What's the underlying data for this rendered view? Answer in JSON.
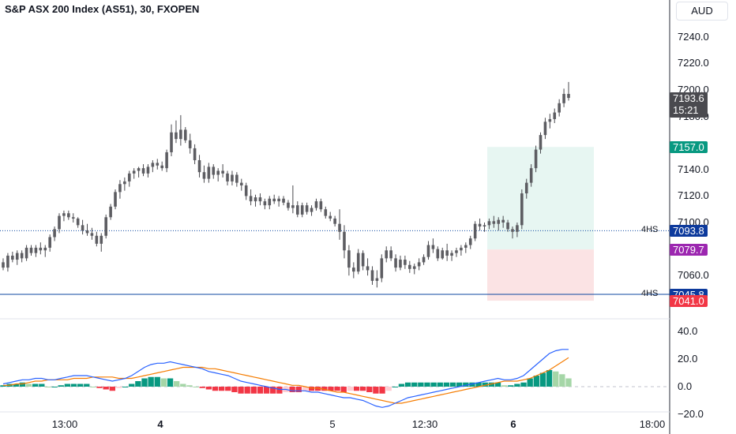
{
  "header": {
    "title": "S&P ASX 200 Index (AS51), 30, FXOPEN",
    "currency_label": "AUD"
  },
  "chart_data": {
    "type": "candlestick",
    "price_axis": {
      "ticks": [
        "7240.0",
        "7220.0",
        "7200.0",
        "7180.0",
        "7140.0",
        "7120.0",
        "7100.0",
        "7060.0"
      ],
      "ylim": [
        7034,
        7262
      ]
    },
    "time_axis": {
      "ticks": [
        "13:00",
        "4",
        "5",
        "12:30",
        "6",
        "18:00"
      ],
      "bold": [
        false,
        true,
        false,
        false,
        true,
        false
      ]
    },
    "candles": [
      [
        7070,
        7073,
        7064,
        7066
      ],
      [
        7066,
        7077,
        7063,
        7075
      ],
      [
        7075,
        7078,
        7070,
        7072
      ],
      [
        7072,
        7079,
        7068,
        7077
      ],
      [
        7077,
        7079,
        7070,
        7073
      ],
      [
        7073,
        7083,
        7071,
        7081
      ],
      [
        7081,
        7083,
        7075,
        7077
      ],
      [
        7077,
        7083,
        7074,
        7081
      ],
      [
        7081,
        7085,
        7076,
        7079
      ],
      [
        7079,
        7083,
        7074,
        7081
      ],
      [
        7081,
        7091,
        7078,
        7089
      ],
      [
        7089,
        7097,
        7086,
        7095
      ],
      [
        7095,
        7107,
        7092,
        7105
      ],
      [
        7105,
        7109,
        7101,
        7107
      ],
      [
        7107,
        7109,
        7102,
        7104
      ],
      [
        7104,
        7107,
        7100,
        7103
      ],
      [
        7103,
        7104,
        7096,
        7098
      ],
      [
        7098,
        7102,
        7091,
        7094
      ],
      [
        7094,
        7099,
        7090,
        7092
      ],
      [
        7092,
        7096,
        7087,
        7090
      ],
      [
        7090,
        7093,
        7082,
        7084
      ],
      [
        7084,
        7092,
        7078,
        7090
      ],
      [
        7090,
        7106,
        7088,
        7104
      ],
      [
        7104,
        7114,
        7102,
        7112
      ],
      [
        7112,
        7125,
        7110,
        7123
      ],
      [
        7123,
        7132,
        7118,
        7129
      ],
      [
        7129,
        7134,
        7124,
        7131
      ],
      [
        7131,
        7139,
        7127,
        7137
      ],
      [
        7137,
        7141,
        7133,
        7139
      ],
      [
        7139,
        7142,
        7134,
        7141
      ],
      [
        7141,
        7144,
        7135,
        7137
      ],
      [
        7137,
        7144,
        7134,
        7142
      ],
      [
        7142,
        7147,
        7138,
        7145
      ],
      [
        7145,
        7148,
        7140,
        7143
      ],
      [
        7143,
        7146,
        7139,
        7141
      ],
      [
        7141,
        7155,
        7138,
        7153
      ],
      [
        7153,
        7174,
        7150,
        7168
      ],
      [
        7168,
        7177,
        7160,
        7163
      ],
      [
        7163,
        7181,
        7158,
        7170
      ],
      [
        7170,
        7172,
        7160,
        7162
      ],
      [
        7162,
        7167,
        7152,
        7156
      ],
      [
        7156,
        7159,
        7144,
        7147
      ],
      [
        7147,
        7151,
        7134,
        7138
      ],
      [
        7138,
        7143,
        7130,
        7133
      ],
      [
        7133,
        7145,
        7130,
        7142
      ],
      [
        7142,
        7144,
        7133,
        7136
      ],
      [
        7136,
        7141,
        7131,
        7139
      ],
      [
        7139,
        7144,
        7134,
        7137
      ],
      [
        7137,
        7139,
        7128,
        7131
      ],
      [
        7131,
        7139,
        7128,
        7136
      ],
      [
        7136,
        7138,
        7127,
        7130
      ],
      [
        7130,
        7133,
        7124,
        7128
      ],
      [
        7128,
        7130,
        7117,
        7120
      ],
      [
        7120,
        7125,
        7113,
        7116
      ],
      [
        7116,
        7121,
        7112,
        7119
      ],
      [
        7119,
        7122,
        7113,
        7116
      ],
      [
        7116,
        7118,
        7110,
        7113
      ],
      [
        7113,
        7120,
        7110,
        7118
      ],
      [
        7118,
        7121,
        7114,
        7116
      ],
      [
        7116,
        7120,
        7112,
        7118
      ],
      [
        7118,
        7120,
        7113,
        7115
      ],
      [
        7115,
        7117,
        7109,
        7111
      ],
      [
        7111,
        7128,
        7107,
        7113
      ],
      [
        7113,
        7116,
        7104,
        7106
      ],
      [
        7106,
        7115,
        7104,
        7113
      ],
      [
        7113,
        7115,
        7106,
        7108
      ],
      [
        7108,
        7113,
        7105,
        7111
      ],
      [
        7111,
        7118,
        7109,
        7116
      ],
      [
        7116,
        7118,
        7108,
        7110
      ],
      [
        7110,
        7112,
        7103,
        7105
      ],
      [
        7105,
        7108,
        7101,
        7103
      ],
      [
        7103,
        7105,
        7097,
        7099
      ],
      [
        7099,
        7110,
        7087,
        7093
      ],
      [
        7093,
        7098,
        7073,
        7079
      ],
      [
        7079,
        7083,
        7060,
        7066
      ],
      [
        7066,
        7070,
        7058,
        7063
      ],
      [
        7063,
        7080,
        7061,
        7077
      ],
      [
        7077,
        7079,
        7064,
        7067
      ],
      [
        7067,
        7073,
        7060,
        7064
      ],
      [
        7064,
        7067,
        7053,
        7056
      ],
      [
        7056,
        7064,
        7051,
        7058
      ],
      [
        7058,
        7076,
        7055,
        7073
      ],
      [
        7073,
        7082,
        7070,
        7079
      ],
      [
        7079,
        7082,
        7071,
        7073
      ],
      [
        7073,
        7076,
        7063,
        7066
      ],
      [
        7066,
        7075,
        7064,
        7072
      ],
      [
        7072,
        7075,
        7065,
        7068
      ],
      [
        7068,
        7071,
        7062,
        7065
      ],
      [
        7065,
        7069,
        7061,
        7067
      ],
      [
        7067,
        7073,
        7064,
        7070
      ],
      [
        7070,
        7076,
        7068,
        7074
      ],
      [
        7074,
        7086,
        7072,
        7083
      ],
      [
        7083,
        7088,
        7077,
        7080
      ],
      [
        7080,
        7082,
        7071,
        7073
      ],
      [
        7073,
        7081,
        7072,
        7079
      ],
      [
        7079,
        7084,
        7071,
        7075
      ],
      [
        7075,
        7079,
        7071,
        7077
      ],
      [
        7077,
        7081,
        7074,
        7079
      ],
      [
        7079,
        7083,
        7075,
        7081
      ],
      [
        7081,
        7085,
        7077,
        7083
      ],
      [
        7083,
        7090,
        7080,
        7088
      ],
      [
        7088,
        7101,
        7086,
        7099
      ],
      [
        7099,
        7103,
        7094,
        7097
      ],
      [
        7097,
        7100,
        7093,
        7098
      ],
      [
        7098,
        7103,
        7095,
        7101
      ],
      [
        7101,
        7105,
        7096,
        7099
      ],
      [
        7099,
        7104,
        7094,
        7102
      ],
      [
        7102,
        7105,
        7096,
        7100
      ],
      [
        7100,
        7102,
        7093,
        7095
      ],
      [
        7095,
        7097,
        7088,
        7093
      ],
      [
        7093,
        7100,
        7089,
        7098
      ],
      [
        7098,
        7125,
        7095,
        7122
      ],
      [
        7122,
        7133,
        7118,
        7130
      ],
      [
        7130,
        7144,
        7127,
        7141
      ],
      [
        7141,
        7158,
        7138,
        7155
      ],
      [
        7155,
        7168,
        7152,
        7166
      ],
      [
        7166,
        7179,
        7163,
        7176
      ],
      [
        7176,
        7182,
        7171,
        7178
      ],
      [
        7178,
        7186,
        7175,
        7183
      ],
      [
        7183,
        7193,
        7180,
        7190
      ],
      [
        7190,
        7201,
        7187,
        7197
      ],
      [
        7197,
        7206,
        7192,
        7194
      ]
    ],
    "position": {
      "entry": 7093.8,
      "target": 7157.0,
      "stop": 7041.0
    },
    "levels": [
      {
        "label": "4HS",
        "value": 7093.8,
        "color": "#0d47a1",
        "style": "dotted"
      },
      {
        "label": "4HS",
        "value": 7045.8,
        "color": "#0d47a1",
        "style": "solid"
      }
    ],
    "price_tags": [
      {
        "text": "7193.6",
        "sub": "15:21",
        "value": 7193.6,
        "color": "#4a4a4f"
      },
      {
        "text": "7157.0",
        "value": 7157.0,
        "color": "#089981"
      },
      {
        "text": "7093.8",
        "value": 7093.8,
        "color": "#0d3a9c"
      },
      {
        "text": "7079.7",
        "value": 7079.7,
        "color": "#9c27b0"
      },
      {
        "text": "7045.8",
        "value": 7045.8,
        "color": "#0d3a9c"
      },
      {
        "text": "7041.0",
        "value": 7041.0,
        "color": "#f23645"
      }
    ],
    "macd": {
      "ticks": [
        "40.0",
        "20.0",
        "0.0",
        "−20.0"
      ],
      "ylim": [
        -24,
        48
      ],
      "macd_color": "#2962ff",
      "signal_color": "#f57c00",
      "macd_line": [
        2,
        3,
        4,
        5,
        5,
        6,
        6,
        5,
        5,
        6,
        7,
        8,
        8,
        8,
        7,
        6,
        5,
        4,
        5,
        6,
        8,
        11,
        14,
        16,
        17,
        17,
        18,
        17,
        16,
        15,
        14,
        13,
        11,
        10,
        9,
        8,
        6,
        4,
        3,
        2,
        1,
        0,
        -1,
        -2,
        -2,
        -3,
        -3,
        -3,
        -4,
        -4,
        -5,
        -6,
        -7,
        -8,
        -8,
        -9,
        -10,
        -12,
        -14,
        -15,
        -14,
        -12,
        -10,
        -8,
        -7,
        -6,
        -5,
        -4,
        -3,
        -2,
        -1,
        0,
        1,
        2,
        3,
        4,
        5,
        6,
        5,
        5,
        6,
        8,
        12,
        16,
        20,
        24,
        26,
        27,
        27
      ],
      "signal_line": [
        1,
        1,
        2,
        2,
        3,
        4,
        4,
        5,
        5,
        5,
        5,
        6,
        6,
        6,
        7,
        7,
        7,
        7,
        6,
        6,
        6,
        7,
        8,
        9,
        10,
        11,
        12,
        13,
        14,
        14,
        14,
        14,
        13,
        13,
        12,
        11,
        10,
        9,
        8,
        7,
        6,
        5,
        4,
        3,
        2,
        1,
        1,
        0,
        -1,
        -1,
        -2,
        -3,
        -4,
        -4,
        -5,
        -6,
        -7,
        -8,
        -9,
        -10,
        -11,
        -12,
        -12,
        -11,
        -10,
        -9,
        -8,
        -7,
        -6,
        -5,
        -4,
        -3,
        -2,
        -1,
        0,
        1,
        2,
        3,
        4,
        4,
        4,
        5,
        6,
        8,
        10,
        12,
        15,
        18,
        21
      ]
    }
  }
}
